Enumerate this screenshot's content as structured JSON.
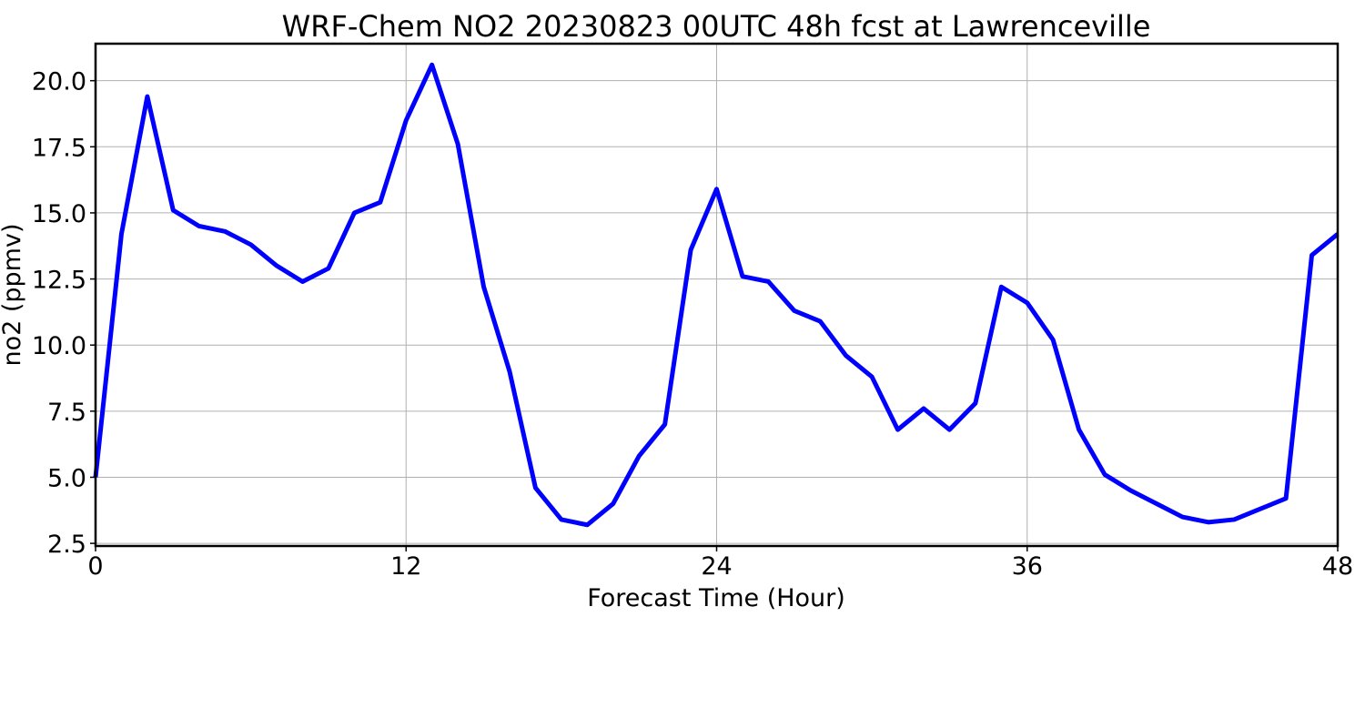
{
  "chart_data": {
    "type": "line",
    "title": "WRF-Chem NO2  20230823 00UTC 48h fcst at Lawrenceville",
    "xlabel": "Forecast Time (Hour)",
    "ylabel": "no2  (ppmv)",
    "xlim": [
      0,
      48
    ],
    "ylim": [
      2.4,
      21.4
    ],
    "xticks": [
      0,
      12,
      24,
      36,
      48
    ],
    "xtick_labels": [
      "0",
      "12",
      "24",
      "36",
      "48"
    ],
    "yticks": [
      2.5,
      5.0,
      7.5,
      10.0,
      12.5,
      15.0,
      17.5,
      20.0
    ],
    "ytick_labels": [
      "2.5",
      "5.0",
      "7.5",
      "10.0",
      "12.5",
      "15.0",
      "17.5",
      "20.0"
    ],
    "grid": true,
    "line_color": "#0000ff",
    "series": [
      {
        "x": [
          0,
          1,
          2,
          3,
          4,
          5,
          6,
          7,
          8,
          9,
          10,
          11,
          12,
          13,
          14,
          15,
          16,
          17,
          18,
          19,
          20,
          21,
          22,
          23,
          24,
          25,
          26,
          27,
          28,
          29,
          30,
          31,
          32,
          33,
          34,
          35,
          36,
          37,
          38,
          39,
          40,
          41,
          42,
          43,
          44,
          45,
          46,
          47,
          48
        ],
        "values": [
          5.0,
          14.2,
          19.4,
          15.1,
          14.5,
          14.3,
          13.8,
          13.0,
          12.4,
          12.9,
          15.0,
          15.4,
          18.5,
          20.6,
          17.6,
          12.2,
          9.0,
          4.6,
          3.4,
          3.2,
          4.0,
          5.8,
          7.0,
          13.6,
          15.9,
          12.6,
          12.4,
          11.3,
          10.9,
          9.6,
          8.8,
          6.8,
          7.6,
          6.8,
          7.8,
          12.2,
          11.6,
          10.2,
          6.8,
          5.1,
          4.5,
          4.0,
          3.5,
          3.3,
          3.4,
          3.8,
          4.2,
          13.4,
          14.2
        ]
      }
    ]
  }
}
